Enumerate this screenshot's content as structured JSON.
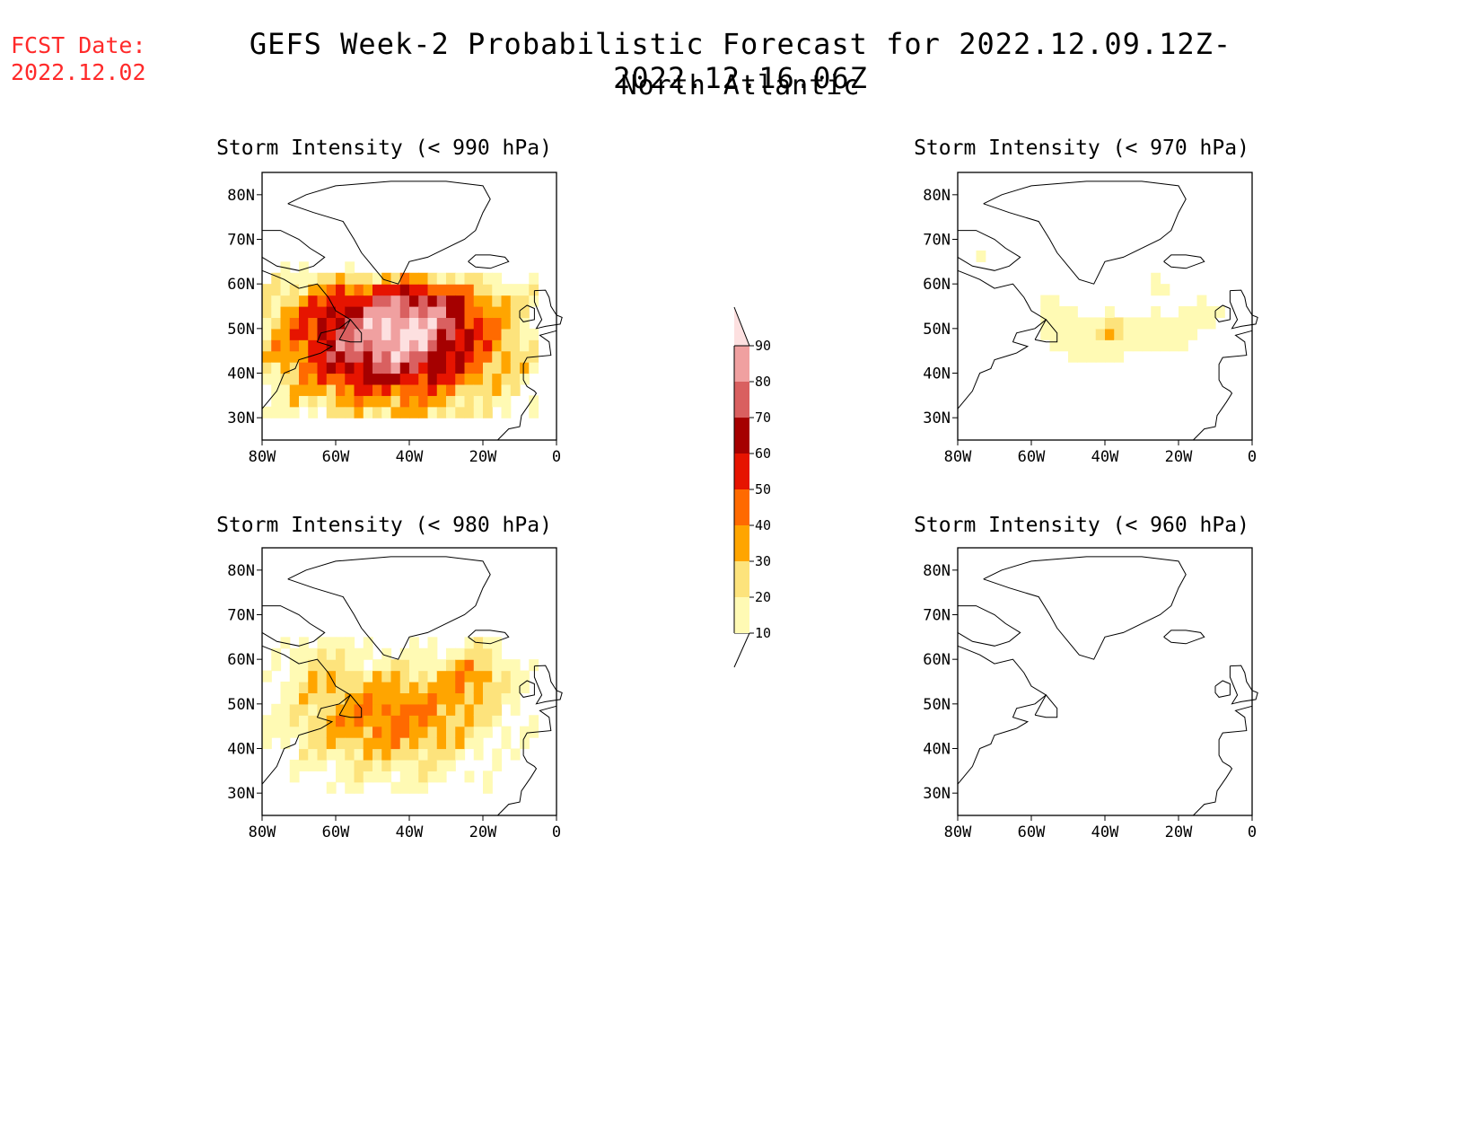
{
  "header": {
    "fcst_label": "FCST Date:",
    "fcst_date": "2022.12.02",
    "title": "GEFS Week-2 Probabilistic Forecast for 2022.12.09.12Z-2022.12.16.06Z",
    "subtitle": "North Atlantic"
  },
  "axes": {
    "lat_ticks": [
      "80N",
      "70N",
      "60N",
      "50N",
      "40N",
      "30N"
    ],
    "lon_ticks": [
      "80W",
      "60W",
      "40W",
      "20W",
      "0"
    ]
  },
  "colorbar": {
    "levels": [
      {
        "label": "10",
        "color": "#fffab4"
      },
      {
        "label": "20",
        "color": "#fde37c"
      },
      {
        "label": "30",
        "color": "#ffa500"
      },
      {
        "label": "40",
        "color": "#ff6a00"
      },
      {
        "label": "50",
        "color": "#e61400"
      },
      {
        "label": "60",
        "color": "#a50000"
      },
      {
        "label": "70",
        "color": "#d96060"
      },
      {
        "label": "80",
        "color": "#f0a0a0"
      },
      {
        "label": "90",
        "color": "#fde0e0"
      }
    ]
  },
  "panels": [
    {
      "id": "p990",
      "title": "Storm Intensity (< 990 hPa)"
    },
    {
      "id": "p970",
      "title": "Storm Intensity (< 970 hPa)"
    },
    {
      "id": "p980",
      "title": "Storm Intensity (< 980 hPa)"
    },
    {
      "id": "p960",
      "title": "Storm Intensity (< 960 hPa)"
    }
  ]
}
